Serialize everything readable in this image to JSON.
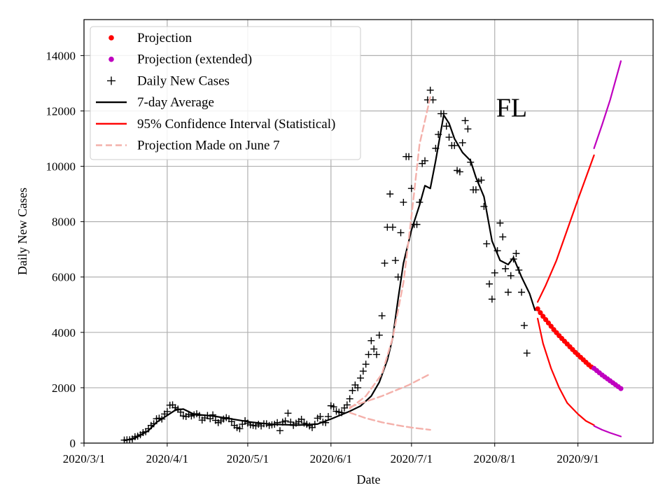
{
  "chart_data": {
    "type": "line",
    "title": "",
    "xlabel": "Date",
    "ylabel": "Daily New Cases",
    "annotation": "FL",
    "xlim": [
      "2020-03-01",
      "2020-09-29"
    ],
    "ylim": [
      0,
      15300
    ],
    "grid": true,
    "legend_position": "top-left",
    "x_ticks": [
      "2020/3/1",
      "2020/4/1",
      "2020/5/1",
      "2020/6/1",
      "2020/7/1",
      "2020/8/1",
      "2020/9/1"
    ],
    "y_ticks": [
      "0",
      "2000",
      "4000",
      "6000",
      "8000",
      "10000",
      "12000",
      "14000"
    ],
    "legend": [
      {
        "label": "Projection",
        "color": "#ff0000",
        "marker": "dot"
      },
      {
        "label": "Projection (extended)",
        "color": "#bf00bf",
        "marker": "dot"
      },
      {
        "label": "Daily New Cases",
        "color": "#000000",
        "marker": "plus"
      },
      {
        "label": "7-day Average",
        "color": "#000000",
        "marker": "line"
      },
      {
        "label": "95% Confidence Interval (Statistical)",
        "color": "#ff0000",
        "marker": "line"
      },
      {
        "label": "Projection Made on June 7",
        "color": "#f4b0aa",
        "marker": "dashed"
      }
    ],
    "series": [
      {
        "name": "Daily New Cases",
        "kind": "scatter-plus",
        "color": "#000000",
        "start_date": "2020-03-16",
        "values": [
          110,
          120,
          120,
          150,
          230,
          250,
          300,
          380,
          410,
          520,
          640,
          700,
          880,
          900,
          870,
          1050,
          1140,
          1370,
          1380,
          1280,
          1230,
          1120,
          980,
          960,
          1040,
          980,
          1020,
          1060,
          1000,
          830,
          910,
          1000,
          880,
          1020,
          820,
          740,
          800,
          870,
          920,
          880,
          780,
          640,
          560,
          520,
          680,
          810,
          720,
          660,
          640,
          620,
          680,
          620,
          700,
          700,
          640,
          660,
          680,
          740,
          450,
          760,
          800,
          1080,
          760,
          640,
          720,
          780,
          860,
          720,
          680,
          620,
          560,
          680,
          900,
          960,
          760,
          740,
          960,
          1350,
          1310,
          1150,
          1120,
          1100,
          1270,
          1380,
          1600,
          1900,
          2100,
          2000,
          2350,
          2600,
          2850,
          3200,
          3700,
          3400,
          3200,
          3900,
          4600,
          6500,
          7800,
          9000,
          7800,
          6600,
          6000,
          7600,
          8700,
          10350,
          10350,
          9200,
          7900,
          7900,
          8700,
          10100,
          10200,
          12400,
          12750,
          12400,
          10650,
          11150,
          11900,
          11900,
          11450,
          11050,
          10750,
          10750,
          9850,
          9800,
          10850,
          11650,
          11350,
          10150,
          9150,
          9150,
          9450,
          9500,
          8550,
          7200,
          5750,
          5200,
          6150,
          6950,
          7950,
          7450,
          6300,
          5450,
          6050,
          6650,
          6850,
          6250,
          5450,
          4250,
          3250
        ]
      },
      {
        "name": "7-day Average",
        "kind": "line",
        "color": "#000000",
        "points": [
          [
            "2020-03-16",
            90
          ],
          [
            "2020-03-20",
            180
          ],
          [
            "2020-03-25",
            450
          ],
          [
            "2020-03-28",
            750
          ],
          [
            "2020-04-01",
            1000
          ],
          [
            "2020-04-04",
            1190
          ],
          [
            "2020-04-07",
            1230
          ],
          [
            "2020-04-11",
            1040
          ],
          [
            "2020-04-18",
            980
          ],
          [
            "2020-04-25",
            870
          ],
          [
            "2020-05-02",
            760
          ],
          [
            "2020-05-10",
            680
          ],
          [
            "2020-05-20",
            650
          ],
          [
            "2020-05-27",
            690
          ],
          [
            "2020-06-01",
            870
          ],
          [
            "2020-06-05",
            1030
          ],
          [
            "2020-06-08",
            1150
          ],
          [
            "2020-06-12",
            1340
          ],
          [
            "2020-06-16",
            1700
          ],
          [
            "2020-06-19",
            2200
          ],
          [
            "2020-06-22",
            3000
          ],
          [
            "2020-06-24",
            3800
          ],
          [
            "2020-06-26",
            5200
          ],
          [
            "2020-06-28",
            6500
          ],
          [
            "2020-07-01",
            7700
          ],
          [
            "2020-07-04",
            8600
          ],
          [
            "2020-07-06",
            9300
          ],
          [
            "2020-07-08",
            9200
          ],
          [
            "2020-07-10",
            10200
          ],
          [
            "2020-07-12",
            11300
          ],
          [
            "2020-07-13",
            11850
          ],
          [
            "2020-07-15",
            11550
          ],
          [
            "2020-07-17",
            11000
          ],
          [
            "2020-07-20",
            10500
          ],
          [
            "2020-07-23",
            10200
          ],
          [
            "2020-07-25",
            9600
          ],
          [
            "2020-07-28",
            8900
          ],
          [
            "2020-07-31",
            7300
          ],
          [
            "2020-08-03",
            6600
          ],
          [
            "2020-08-06",
            6450
          ],
          [
            "2020-08-08",
            6700
          ],
          [
            "2020-08-11",
            6000
          ],
          [
            "2020-08-14",
            5400
          ],
          [
            "2020-08-16",
            4800
          ]
        ]
      },
      {
        "name": "Projection",
        "kind": "dots",
        "color": "#ff0000",
        "start_date": "2020-08-17",
        "values": [
          4850,
          4710,
          4580,
          4460,
          4340,
          4220,
          4100,
          3990,
          3880,
          3780,
          3680,
          3580,
          3480,
          3380,
          3280,
          3190,
          3100,
          3010,
          2920,
          2830,
          2750
        ]
      },
      {
        "name": "Projection (extended)",
        "kind": "dots",
        "color": "#bf00bf",
        "start_date": "2020-09-07",
        "values": [
          2700,
          2620,
          2540,
          2460,
          2390,
          2320,
          2250,
          2180,
          2110,
          2040,
          1970
        ]
      },
      {
        "name": "95% Confidence Interval (Statistical) upper",
        "kind": "line",
        "color": "#ff0000",
        "points": [
          [
            "2020-08-17",
            5100
          ],
          [
            "2020-08-20",
            5700
          ],
          [
            "2020-08-24",
            6600
          ],
          [
            "2020-08-28",
            7700
          ],
          [
            "2020-09-01",
            8800
          ],
          [
            "2020-09-04",
            9600
          ],
          [
            "2020-09-07",
            10400
          ]
        ]
      },
      {
        "name": "95% Confidence Interval (Statistical) lower",
        "kind": "line",
        "color": "#ff0000",
        "points": [
          [
            "2020-08-17",
            4500
          ],
          [
            "2020-08-19",
            3600
          ],
          [
            "2020-08-22",
            2700
          ],
          [
            "2020-08-25",
            2000
          ],
          [
            "2020-08-28",
            1450
          ],
          [
            "2020-09-01",
            1050
          ],
          [
            "2020-09-04",
            800
          ],
          [
            "2020-09-07",
            650
          ]
        ]
      },
      {
        "name": "95% Confidence Interval (extended) upper",
        "kind": "line",
        "color": "#bf00bf",
        "points": [
          [
            "2020-09-07",
            10650
          ],
          [
            "2020-09-10",
            11500
          ],
          [
            "2020-09-13",
            12400
          ],
          [
            "2020-09-17",
            13800
          ]
        ]
      },
      {
        "name": "95% Confidence Interval (extended) lower",
        "kind": "line",
        "color": "#bf00bf",
        "points": [
          [
            "2020-09-07",
            620
          ],
          [
            "2020-09-10",
            480
          ],
          [
            "2020-09-13",
            370
          ],
          [
            "2020-09-17",
            240
          ]
        ]
      },
      {
        "name": "Projection Made on June 7 (central)",
        "kind": "dashed",
        "color": "#f4b0aa",
        "points": [
          [
            "2020-06-08",
            1250
          ],
          [
            "2020-06-14",
            1700
          ],
          [
            "2020-06-20",
            2500
          ],
          [
            "2020-06-24",
            3800
          ],
          [
            "2020-06-28",
            5800
          ],
          [
            "2020-07-01",
            8200
          ],
          [
            "2020-07-04",
            10800
          ],
          [
            "2020-07-08",
            12500
          ]
        ]
      },
      {
        "name": "Projection Made on June 7 (upper)",
        "kind": "dashed",
        "color": "#f4b0aa",
        "points": [
          [
            "2020-06-08",
            1300
          ],
          [
            "2020-06-14",
            1500
          ],
          [
            "2020-06-20",
            1700
          ],
          [
            "2020-06-25",
            1900
          ],
          [
            "2020-06-30",
            2100
          ],
          [
            "2020-07-04",
            2300
          ],
          [
            "2020-07-08",
            2500
          ]
        ]
      },
      {
        "name": "Projection Made on June 7 (lower)",
        "kind": "dashed",
        "color": "#f4b0aa",
        "points": [
          [
            "2020-06-08",
            1100
          ],
          [
            "2020-06-14",
            900
          ],
          [
            "2020-06-20",
            750
          ],
          [
            "2020-06-26",
            640
          ],
          [
            "2020-07-01",
            560
          ],
          [
            "2020-07-08",
            480
          ]
        ]
      }
    ]
  }
}
